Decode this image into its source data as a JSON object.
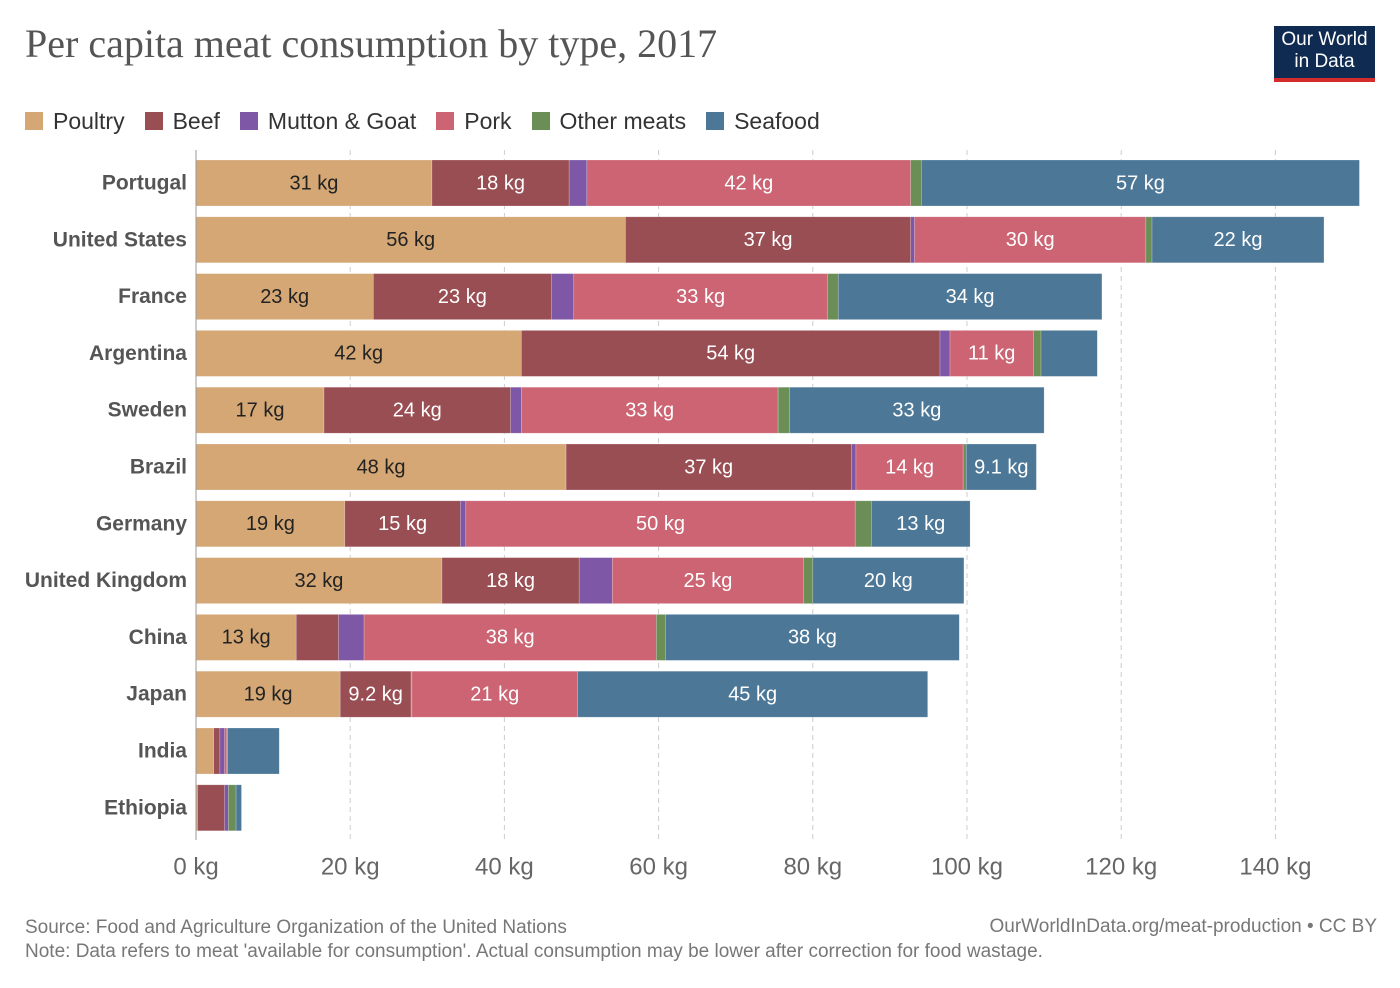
{
  "header": {
    "title": "Per capita meat consumption by type, 2017",
    "logo_line1": "Our World",
    "logo_line2": "in Data"
  },
  "footer": {
    "source": "Source: Food and Agriculture Organization of the United Nations",
    "note": "Note: Data refers to meat 'available for consumption'. Actual consumption may be lower after correction for food wastage.",
    "url": "OurWorldInData.org/meat-production • CC BY"
  },
  "chart_data": {
    "type": "bar",
    "orientation": "horizontal",
    "stacked": true,
    "title": "Per capita meat consumption by type, 2017",
    "unit": "kg",
    "xlim": [
      0,
      150
    ],
    "xticks": [
      0,
      20,
      40,
      60,
      80,
      100,
      120,
      140
    ],
    "xtick_labels": [
      "0 kg",
      "20 kg",
      "40 kg",
      "60 kg",
      "80 kg",
      "100 kg",
      "120 kg",
      "140 kg"
    ],
    "grid": "vertical dashed",
    "legend_position": "top-left",
    "categories": [
      "Portugal",
      "United States",
      "France",
      "Argentina",
      "Sweden",
      "Brazil",
      "Germany",
      "United Kingdom",
      "China",
      "Japan",
      "India",
      "Ethiopia"
    ],
    "series": [
      {
        "name": "Poultry",
        "color": "#d4a775",
        "values": [
          30.6,
          55.7,
          23.0,
          42.2,
          16.6,
          48.0,
          19.3,
          31.9,
          13.0,
          18.7,
          2.3,
          0.2
        ]
      },
      {
        "name": "Beef",
        "color": "#994e54",
        "values": [
          17.8,
          37.0,
          23.1,
          54.3,
          24.2,
          37.0,
          15.0,
          17.8,
          5.5,
          9.2,
          0.8,
          3.5
        ]
      },
      {
        "name": "Mutton & Goat",
        "color": "#7e58a6",
        "values": [
          2.3,
          0.5,
          2.9,
          1.3,
          1.4,
          0.6,
          0.7,
          4.3,
          3.3,
          0.1,
          0.6,
          0.5
        ]
      },
      {
        "name": "Pork",
        "color": "#cc6474",
        "values": [
          42.0,
          30.0,
          32.9,
          10.8,
          33.3,
          13.9,
          50.5,
          24.8,
          37.9,
          21.5,
          0.3,
          0.0
        ]
      },
      {
        "name": "Other meats",
        "color": "#6b8e57",
        "values": [
          1.4,
          0.8,
          1.4,
          1.0,
          1.5,
          0.4,
          2.1,
          1.2,
          1.2,
          0.0,
          0.1,
          1.0
        ]
      },
      {
        "name": "Seafood",
        "color": "#4c7797",
        "values": [
          56.8,
          22.3,
          34.2,
          7.3,
          33.0,
          9.1,
          12.8,
          19.6,
          38.1,
          45.4,
          6.7,
          0.7
        ]
      }
    ],
    "data_labels": [
      [
        "31 kg",
        "18 kg",
        "",
        "42 kg",
        "",
        "57 kg"
      ],
      [
        "56 kg",
        "37 kg",
        "",
        "30 kg",
        "",
        "22 kg"
      ],
      [
        "23 kg",
        "23 kg",
        "",
        "33 kg",
        "",
        "34 kg"
      ],
      [
        "42 kg",
        "54 kg",
        "",
        "11 kg",
        "",
        ""
      ],
      [
        "17 kg",
        "24 kg",
        "",
        "33 kg",
        "",
        "33 kg"
      ],
      [
        "48 kg",
        "37 kg",
        "",
        "14 kg",
        "",
        "9.1 kg"
      ],
      [
        "19 kg",
        "15 kg",
        "",
        "50 kg",
        "",
        "13 kg"
      ],
      [
        "32 kg",
        "18 kg",
        "",
        "25 kg",
        "",
        "20 kg"
      ],
      [
        "13 kg",
        "",
        "",
        "38 kg",
        "",
        "38 kg"
      ],
      [
        "19 kg",
        "9.2 kg",
        "",
        "21 kg",
        "",
        "45 kg"
      ],
      [
        "",
        "",
        "",
        "",
        "",
        ""
      ],
      [
        "",
        "",
        "",
        "",
        "",
        ""
      ]
    ]
  }
}
